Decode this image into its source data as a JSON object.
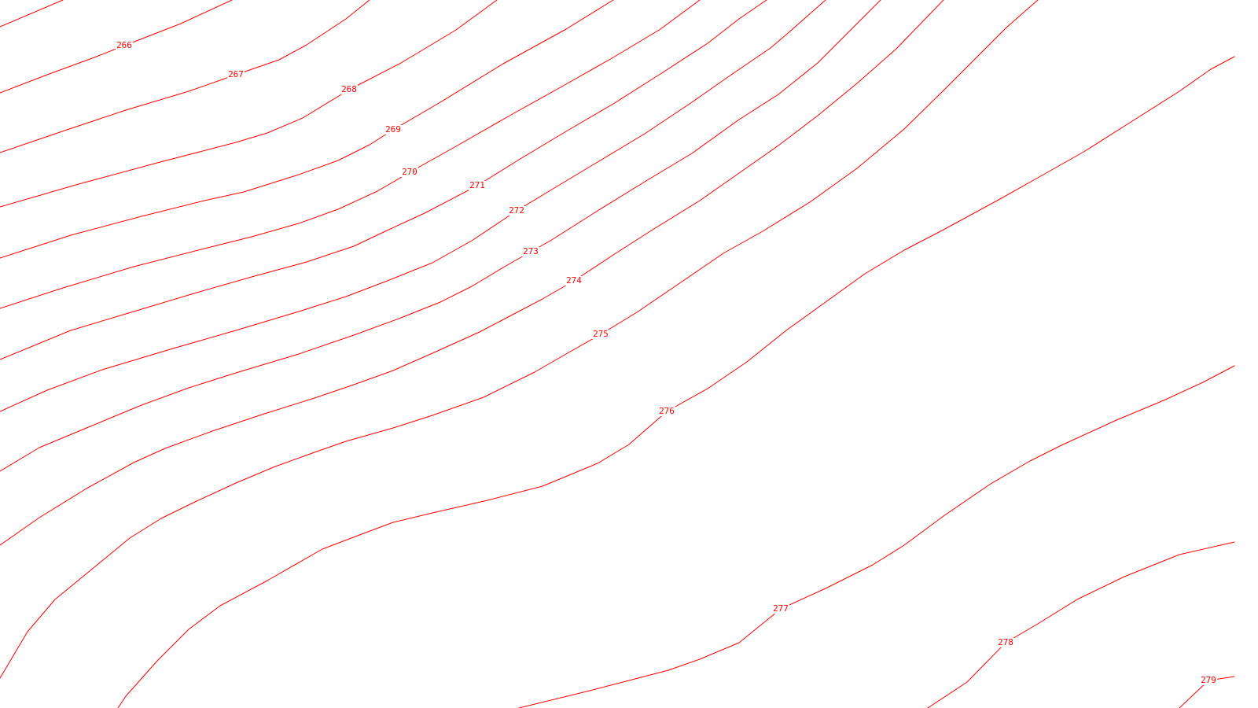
{
  "map": {
    "type": "contour-map",
    "line_color": "#ff0000",
    "background_color": "#ffffff",
    "contour_interval": 1,
    "contours": [
      {
        "elevation": 266,
        "label": "266"
      },
      {
        "elevation": 267,
        "label": "267"
      },
      {
        "elevation": 268,
        "label": "268"
      },
      {
        "elevation": 269,
        "label": "269"
      },
      {
        "elevation": 270,
        "label": "270"
      },
      {
        "elevation": 271,
        "label": "271"
      },
      {
        "elevation": 272,
        "label": "272"
      },
      {
        "elevation": 273,
        "label": "273"
      },
      {
        "elevation": 274,
        "label": "274"
      },
      {
        "elevation": 275,
        "label": "275"
      },
      {
        "elevation": 276,
        "label": "276"
      },
      {
        "elevation": 277,
        "label": "277"
      },
      {
        "elevation": 278,
        "label": "278"
      },
      {
        "elevation": 279,
        "label": "279"
      }
    ]
  }
}
